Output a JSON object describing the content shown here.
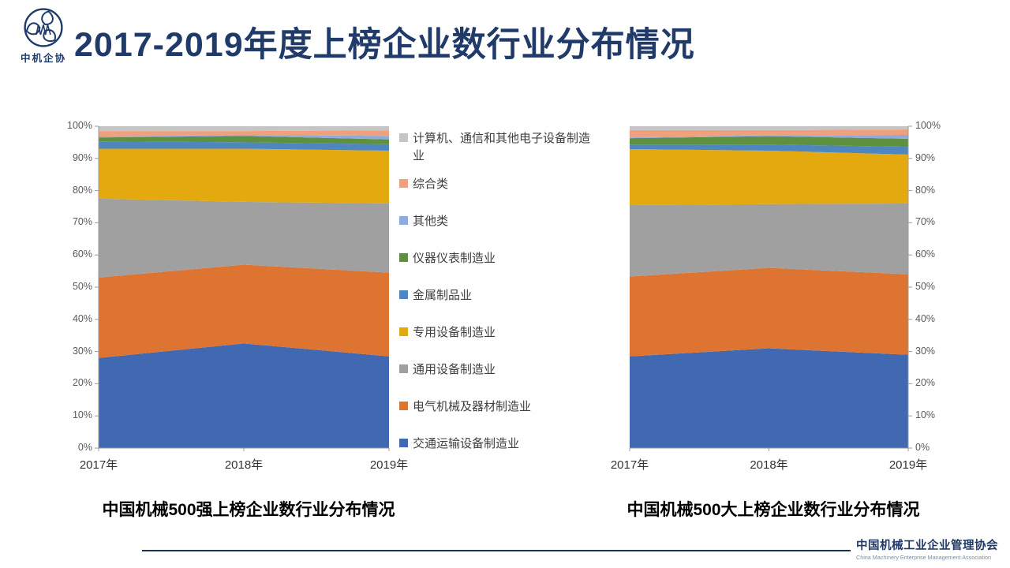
{
  "slide": {
    "title": "2017-2019年度上榜企业数行业分布情况",
    "logo_text": "中机企协",
    "footer": {
      "org_cn": "中国机械工业企业管理协会",
      "org_en": "China Machinery Enterprise Management Association"
    }
  },
  "colors": {
    "title_navy": "#203A69",
    "footer_line": "#1B3150",
    "axis": "#9B9B9B",
    "tick_label": "#595959"
  },
  "legend": [
    {
      "label": "计算机、通信和其他电子设备制造业",
      "color": "#C5C5C5"
    },
    {
      "label": "综合类",
      "color": "#F0A07C"
    },
    {
      "label": "其他类",
      "color": "#8FAADC"
    },
    {
      "label": "仪器仪表制造业",
      "color": "#5D9140"
    },
    {
      "label": "金属制品业",
      "color": "#4E86C0"
    },
    {
      "label": "专用设备制造业",
      "color": "#E3A90E"
    },
    {
      "label": "通用设备制造业",
      "color": "#A0A0A0"
    },
    {
      "label": "电气机械及器材制造业",
      "color": "#DD7431"
    },
    {
      "label": "交通运输设备制造业",
      "color": "#4169B1"
    }
  ],
  "chart_data": [
    {
      "type": "area",
      "stacked": true,
      "percent": true,
      "title": "中国机械500强上榜企业数行业分布情况",
      "x": [
        "2017年",
        "2018年",
        "2019年"
      ],
      "ylim": [
        0,
        100
      ],
      "yticks": [
        "0%",
        "10%",
        "20%",
        "30%",
        "40%",
        "50%",
        "60%",
        "70%",
        "80%",
        "90%",
        "100%"
      ],
      "y_axis_side": "left",
      "grid": false,
      "series": [
        {
          "name": "交通运输设备制造业",
          "color": "#4169B1",
          "values": [
            28.0,
            32.5,
            28.5
          ]
        },
        {
          "name": "电气机械及器材制造业",
          "color": "#DD7431",
          "values": [
            25.0,
            24.5,
            26.0
          ]
        },
        {
          "name": "通用设备制造业",
          "color": "#A0A0A0",
          "values": [
            24.5,
            19.5,
            21.5
          ]
        },
        {
          "name": "专用设备制造业",
          "color": "#E3A90E",
          "values": [
            15.5,
            16.5,
            16.4
          ]
        },
        {
          "name": "金属制品业",
          "color": "#4E86C0",
          "values": [
            2.3,
            2.0,
            2.0
          ]
        },
        {
          "name": "仪器仪表制造业",
          "color": "#5D9140",
          "values": [
            1.2,
            2.0,
            1.5
          ]
        },
        {
          "name": "其他类",
          "color": "#8FAADC",
          "values": [
            0.3,
            0.3,
            1.1
          ]
        },
        {
          "name": "综合类",
          "color": "#F0A07C",
          "values": [
            1.7,
            1.2,
            1.7
          ]
        },
        {
          "name": "计算机、通信和其他电子设备制造业",
          "color": "#C5C5C5",
          "values": [
            1.5,
            1.5,
            1.3
          ]
        }
      ]
    },
    {
      "type": "area",
      "stacked": true,
      "percent": true,
      "title": "中国机械500大上榜企业数行业分布情况",
      "x": [
        "2017年",
        "2018年",
        "2019年"
      ],
      "ylim": [
        0,
        100
      ],
      "yticks": [
        "0%",
        "10%",
        "20%",
        "30%",
        "40%",
        "50%",
        "60%",
        "70%",
        "80%",
        "90%",
        "100%"
      ],
      "y_axis_side": "right",
      "grid": false,
      "series": [
        {
          "name": "交通运输设备制造业",
          "color": "#4169B1",
          "values": [
            28.5,
            31.0,
            29.0
          ]
        },
        {
          "name": "电气机械及器材制造业",
          "color": "#DD7431",
          "values": [
            24.8,
            25.0,
            25.0
          ]
        },
        {
          "name": "通用设备制造业",
          "color": "#A0A0A0",
          "values": [
            22.2,
            19.8,
            22.0
          ]
        },
        {
          "name": "专用设备制造业",
          "color": "#E3A90E",
          "values": [
            17.4,
            16.6,
            15.2
          ]
        },
        {
          "name": "金属制品业",
          "color": "#4E86C0",
          "values": [
            1.4,
            1.9,
            2.4
          ]
        },
        {
          "name": "仪器仪表制造业",
          "color": "#5D9140",
          "values": [
            2.0,
            2.6,
            2.5
          ]
        },
        {
          "name": "其他类",
          "color": "#8FAADC",
          "values": [
            0.2,
            0.3,
            1.2
          ]
        },
        {
          "name": "综合类",
          "color": "#F0A07C",
          "values": [
            2.3,
            1.6,
            1.7
          ]
        },
        {
          "name": "计算机、通信和其他电子设备制造业",
          "color": "#C5C5C5",
          "values": [
            1.2,
            1.2,
            1.0
          ]
        }
      ]
    }
  ]
}
